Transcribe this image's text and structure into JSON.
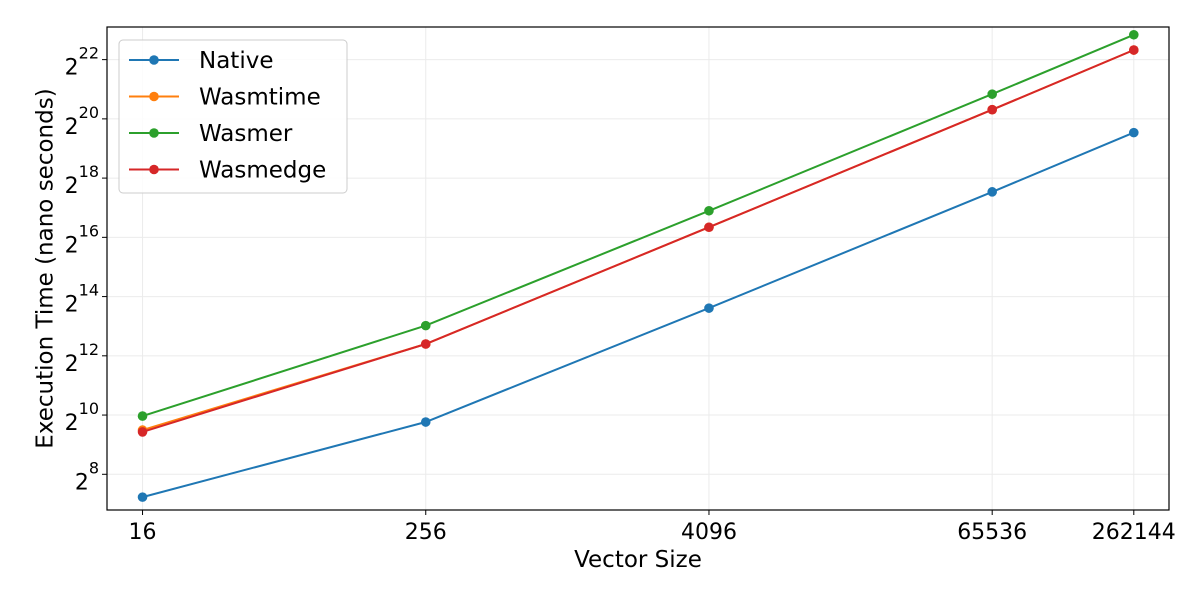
{
  "chart_data": {
    "type": "line",
    "title": "",
    "xlabel": "Vector Size",
    "ylabel": "Execution Time (nano seconds)",
    "x_scale": "log2",
    "y_scale": "log2",
    "x": [
      16,
      256,
      4096,
      65536,
      262144
    ],
    "x_tick_labels": [
      "16",
      "256",
      "4096",
      "65536",
      "262144"
    ],
    "y_ticks": [
      {
        "base": "2",
        "exp": "8"
      },
      {
        "base": "2",
        "exp": "10"
      },
      {
        "base": "2",
        "exp": "12"
      },
      {
        "base": "2",
        "exp": "14"
      },
      {
        "base": "2",
        "exp": "16"
      },
      {
        "base": "2",
        "exp": "18"
      },
      {
        "base": "2",
        "exp": "20"
      },
      {
        "base": "2",
        "exp": "22"
      }
    ],
    "xlim": [
      11.3,
      370000
    ],
    "ylim": [
      111,
      9000000
    ],
    "grid": true,
    "legend_position": "top-left",
    "series": [
      {
        "name": "Native",
        "color": "#1f77b4",
        "values": [
          150,
          870,
          12500,
          190000,
          760000
        ]
      },
      {
        "name": "Wasmtime",
        "color": "#ff7f0e",
        "values": [
          720,
          5400,
          83000,
          1300000,
          5250000
        ]
      },
      {
        "name": "Wasmer",
        "color": "#2ca02c",
        "values": [
          1000,
          8300,
          122000,
          1870000,
          7500000
        ]
      },
      {
        "name": "Wasmedge",
        "color": "#d62728",
        "values": [
          690,
          5400,
          83000,
          1300000,
          5250000
        ]
      }
    ]
  }
}
